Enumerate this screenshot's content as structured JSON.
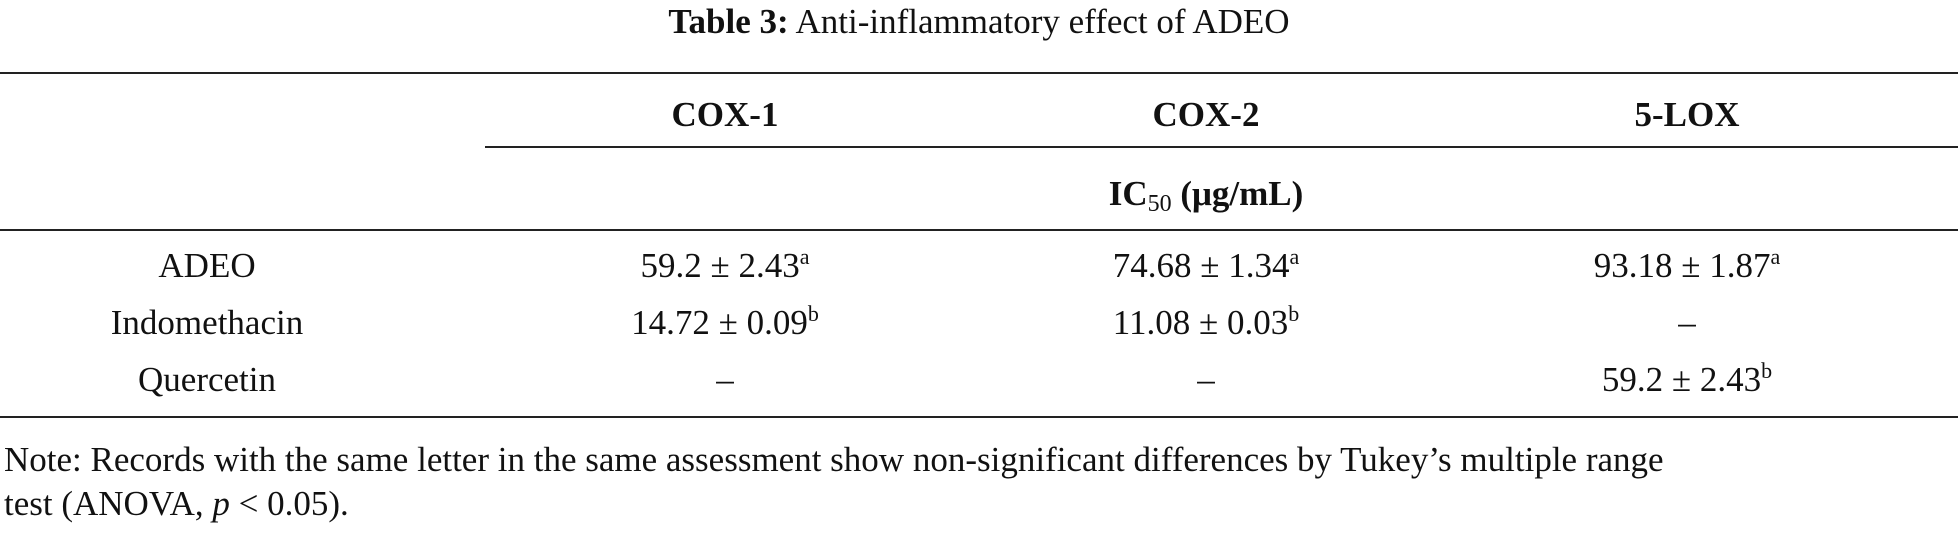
{
  "table": {
    "title": {
      "label": "Table 3:",
      "text": "Anti-inflammatory effect of ADEO"
    },
    "columns": [
      "COX-1",
      "COX-2",
      "5-LOX"
    ],
    "unit": {
      "text": "IC",
      "sub": "50",
      "rest": "(μg/mL)"
    },
    "rows": [
      {
        "label": "ADEO",
        "cells": [
          {
            "text": "59.2 ± 2.43",
            "sup": "a"
          },
          {
            "text": "74.68 ± 1.34",
            "sup": "a"
          },
          {
            "text": "93.18 ± 1.87",
            "sup": "a"
          }
        ]
      },
      {
        "label": "Indomethacin",
        "cells": [
          {
            "text": "14.72 ± 0.09",
            "sup": "b"
          },
          {
            "text": "11.08 ± 0.03",
            "sup": "b"
          },
          {
            "text": "–"
          }
        ]
      },
      {
        "label": "Quercetin",
        "cells": [
          {
            "text": "–"
          },
          {
            "text": "–"
          },
          {
            "text": "59.2 ± 2.43",
            "sup": "b"
          }
        ]
      }
    ],
    "note": [
      "Note: Records with the same letter in the same assessment show non-significant differences by Tukey’s multiple range",
      "test (ANOVA, ",
      "p",
      " < 0.05)."
    ]
  }
}
